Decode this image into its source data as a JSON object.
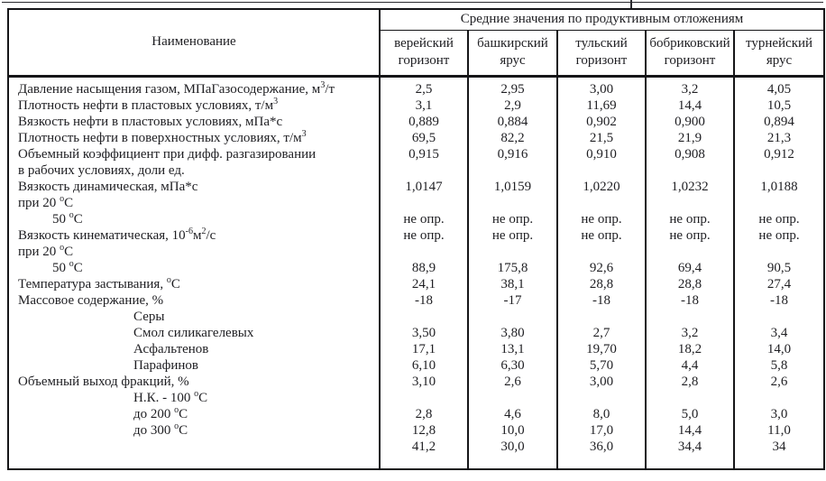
{
  "table": {
    "name_header": "Наименование",
    "group_header": "Средние значения по продуктивным отложениям",
    "columns": [
      "верейский\nгоризонт",
      "башкирский\nярус",
      "тульский\nгоризонт",
      "бобриковский\nгоризонт",
      "турнейский\nярус"
    ],
    "not_determined_text": "не опр.",
    "rows": [
      {
        "label": "Давление насыщения газом, МПаГазосодержание, м<sup>3</sup>/т",
        "indent": 0,
        "values": [
          "2,5",
          "2,95",
          "3,00",
          "3,2",
          "4,05"
        ]
      },
      {
        "label": "Плотность нефти в пластовых условиях, т/м<sup>3</sup>",
        "indent": 0,
        "values": [
          "3,1",
          "2,9",
          "11,69",
          "14,4",
          "10,5"
        ]
      },
      {
        "label": "Вязкость нефти в пластовых условиях, мПа*с",
        "indent": 0,
        "values": [
          "0,889",
          "0,884",
          "0,902",
          "0,900",
          "0,894"
        ]
      },
      {
        "label": "Плотность нефти в поверхностных условиях, т/м<sup>3</sup>",
        "indent": 0,
        "values": [
          "69,5",
          "82,2",
          "21,5",
          "21,9",
          "21,3"
        ]
      },
      {
        "label": "Объемный коэффициент при дифф. разгазировании",
        "indent": 0,
        "values": [
          "0,915",
          "0,916",
          "0,910",
          "0,908",
          "0,912"
        ]
      },
      {
        "label": "в рабочих условиях, доли ед.",
        "indent": 0,
        "values": [
          "",
          "",
          "",
          "",
          ""
        ]
      },
      {
        "label": "Вязкость динамическая, мПа*с",
        "indent": 0,
        "values": [
          "1,0147",
          "1,0159",
          "1,0220",
          "1,0232",
          "1,0188"
        ]
      },
      {
        "label": "при 20 <sup>о</sup>С",
        "indent": 0,
        "values": [
          "",
          "",
          "",
          "",
          ""
        ]
      },
      {
        "label": "50 <sup>о</sup>С",
        "indent": 1,
        "values": [
          "не опр.",
          "не опр.",
          "не опр.",
          "не опр.",
          "не опр."
        ]
      },
      {
        "label": "Вязкость кинематическая, 10<sup>-6</sup>м<sup>2</sup>/с",
        "indent": 0,
        "values": [
          "не опр.",
          "не опр.",
          "не опр.",
          "не опр.",
          "не опр."
        ]
      },
      {
        "label": "при 20 <sup>о</sup>С",
        "indent": 0,
        "values": [
          "",
          "",
          "",
          "",
          ""
        ]
      },
      {
        "label": "50 <sup>о</sup>С",
        "indent": 1,
        "values": [
          "88,9",
          "175,8",
          "92,6",
          "69,4",
          "90,5"
        ]
      },
      {
        "label": "Температура застывания, <sup>о</sup>С",
        "indent": 0,
        "values": [
          "24,1",
          "38,1",
          "28,8",
          "28,8",
          "27,4"
        ]
      },
      {
        "label": "Массовое содержание, %",
        "indent": 0,
        "values": [
          "-18",
          "-17",
          "-18",
          "-18",
          "-18"
        ]
      },
      {
        "label": "Серы",
        "indent": 2,
        "values": [
          "",
          "",
          "",
          "",
          ""
        ]
      },
      {
        "label": "Смол силикагелевых",
        "indent": 2,
        "values": [
          "3,50",
          "3,80",
          "2,7",
          "3,2",
          "3,4"
        ]
      },
      {
        "label": "Асфальтенов",
        "indent": 2,
        "values": [
          "17,1",
          "13,1",
          "19,70",
          "18,2",
          "14,0"
        ]
      },
      {
        "label": "Парафинов",
        "indent": 2,
        "values": [
          "6,10",
          "6,30",
          "5,70",
          "4,4",
          "5,8"
        ]
      },
      {
        "label": "Объемный выход фракций, %",
        "indent": 0,
        "values": [
          "3,10",
          "2,6",
          "3,00",
          "2,8",
          "2,6"
        ]
      },
      {
        "label": "Н.К. - 100 <sup>о</sup>С",
        "indent": 2,
        "values": [
          "",
          "",
          "",
          "",
          ""
        ]
      },
      {
        "label": "до 200 <sup>о</sup>С",
        "indent": 2,
        "values": [
          "2,8",
          "4,6",
          "8,0",
          "5,0",
          "3,0"
        ]
      },
      {
        "label": "до 300 <sup>о</sup>С",
        "indent": 2,
        "values": [
          "12,8",
          "10,0",
          "17,0",
          "14,4",
          "11,0"
        ]
      },
      {
        "label": "",
        "indent": 0,
        "values": [
          "41,2",
          "30,0",
          "36,0",
          "34,4",
          "34"
        ]
      }
    ]
  }
}
